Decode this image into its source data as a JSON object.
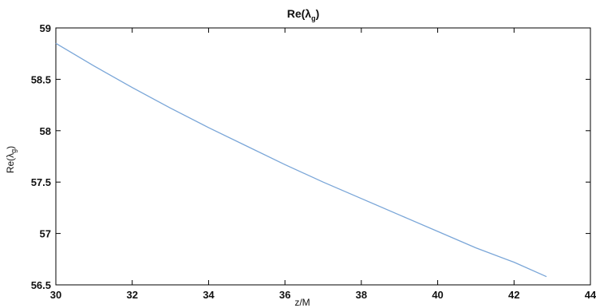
{
  "chart_data": {
    "type": "line",
    "title": "Re(λg)",
    "xlabel": "z/M",
    "ylabel": "Re(λg)",
    "xlim": [
      30,
      44
    ],
    "ylim": [
      56.5,
      59
    ],
    "xticks": [
      30,
      32,
      34,
      36,
      38,
      40,
      42,
      44
    ],
    "yticks": [
      56.5,
      57,
      57.5,
      58,
      58.5,
      59
    ],
    "grid": false,
    "colors": {
      "line": "#7aa6d8",
      "axes": "#000000"
    },
    "series": [
      {
        "x": [
          30,
          31,
          32,
          33,
          34,
          35,
          36,
          37,
          38,
          39,
          40,
          41,
          42,
          42.85
        ],
        "y": [
          58.85,
          58.63,
          58.42,
          58.22,
          58.03,
          57.85,
          57.67,
          57.5,
          57.34,
          57.18,
          57.02,
          56.86,
          56.72,
          56.58
        ]
      }
    ]
  }
}
